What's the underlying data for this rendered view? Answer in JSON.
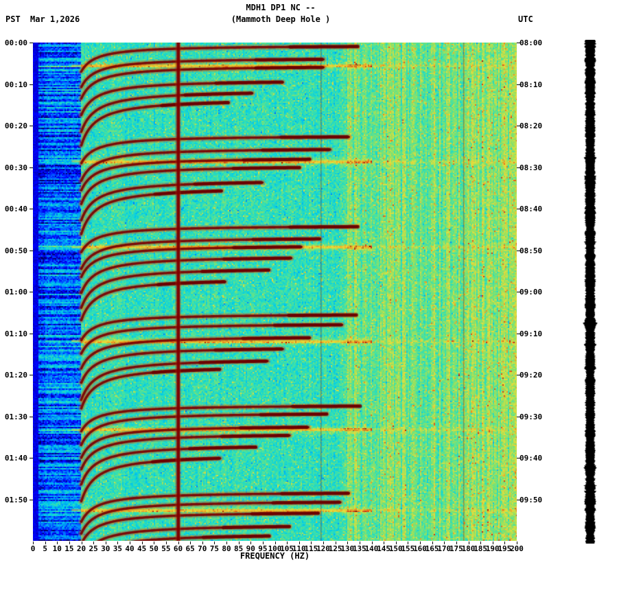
{
  "header": {
    "title": "MDH1 DP1 NC --",
    "subtitle": "(Mammoth Deep Hole )",
    "tz_left": "PST",
    "date": "Mar 1,2026",
    "tz_right": "UTC"
  },
  "chart_data": {
    "type": "heatmap",
    "title": "MDH1 DP1 NC --",
    "subtitle": "(Mammoth Deep Hole )",
    "station": "MDH1 DP1 NC",
    "site": "Mammoth Deep Hole",
    "date": "Mar 1,2026",
    "xlabel": "FREQUENCY (HZ)",
    "x_range_hz": [
      0,
      200
    ],
    "x_ticks": [
      0,
      5,
      10,
      15,
      20,
      25,
      30,
      35,
      40,
      45,
      50,
      55,
      60,
      65,
      70,
      75,
      80,
      85,
      90,
      95,
      100,
      105,
      110,
      115,
      120,
      125,
      130,
      135,
      140,
      145,
      150,
      155,
      160,
      165,
      170,
      175,
      180,
      185,
      190,
      195,
      200
    ],
    "left_axis_timezone": "PST",
    "right_axis_timezone": "UTC",
    "left_time_labels": [
      "00:00",
      "00:10",
      "00:20",
      "00:30",
      "00:40",
      "00:50",
      "01:00",
      "01:10",
      "01:20",
      "01:30",
      "01:40",
      "01:50"
    ],
    "right_time_labels": [
      "08:00",
      "08:10",
      "08:20",
      "08:30",
      "08:40",
      "08:50",
      "09:00",
      "09:10",
      "09:20",
      "09:30",
      "09:40",
      "09:50"
    ],
    "time_span_minutes": 120,
    "utc_offset_hours": 8,
    "colormap": [
      "#000064",
      "#0000ff",
      "#0078ff",
      "#00cdeb",
      "#3ce1aa",
      "#96e15f",
      "#e6de3c",
      "#f08c1e",
      "#cd2314",
      "#730000"
    ],
    "features": {
      "vertical_lines_hz": [
        {
          "hz": 60,
          "strength": "strong"
        },
        {
          "hz": 119,
          "strength": "faint"
        },
        {
          "hz": 178,
          "strength": "faint"
        }
      ],
      "arc_group_start_min": [
        1,
        22.5,
        44,
        65.5,
        87,
        108
      ],
      "arc_offsets_min": [
        0,
        2.5,
        5,
        7.5,
        10,
        12.5
      ],
      "arc_freq_span_hz": [
        20,
        132
      ],
      "broadband_burst_min": [
        5.5,
        28.5,
        49.2,
        71.8,
        93.2,
        112.5
      ],
      "low_freq_band_hz": [
        0,
        20
      ],
      "right_trace": "black amplitude seismogram trace",
      "description": "Two-hour seismic spectrogram: repeating dark-red resonance arcs sweeping between ~20 and ~130 Hz about every 21 minutes, strong 60 Hz mains line, deep-blue low-frequency band below 20 Hz, yellow-green background above 130 Hz, broadband yellow burst rows, and a black amplitude trace at far right."
    }
  }
}
